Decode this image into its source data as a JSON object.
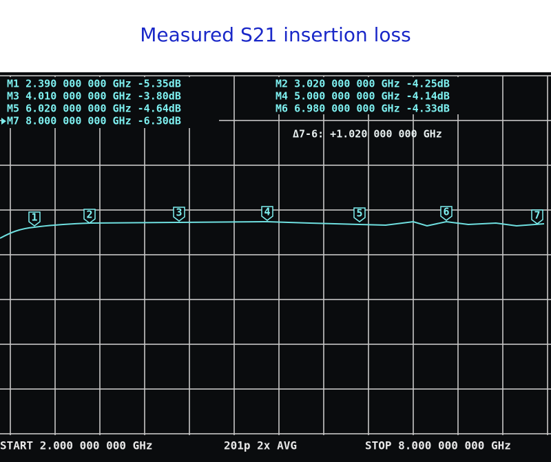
{
  "header": {
    "title": "Measured S21 insertion loss"
  },
  "readouts": {
    "left": [
      "M1 2.390 000 000 GHz -5.35dB",
      "M3 4.010 000 000 GHz -3.80dB",
      "M5 6.020 000 000 GHz -4.64dB",
      "M7 8.000 000 000 GHz -6.30dB"
    ],
    "right": [
      "M2 3.020 000 000 GHz -4.25dB",
      "M4 5.000 000 000 GHz -4.14dB",
      "M6 6.980 000 000 GHz -4.33dB"
    ],
    "delta": "Δ7-6: +1.020 000 000 GHz"
  },
  "markers": [
    "1",
    "2",
    "3",
    "4",
    "5",
    "6",
    "7"
  ],
  "footer": {
    "start": "START 2.000 000 000 GHz",
    "info": "201p 2x AVG",
    "stop": "STOP 8.000 000 000 GHz"
  }
}
